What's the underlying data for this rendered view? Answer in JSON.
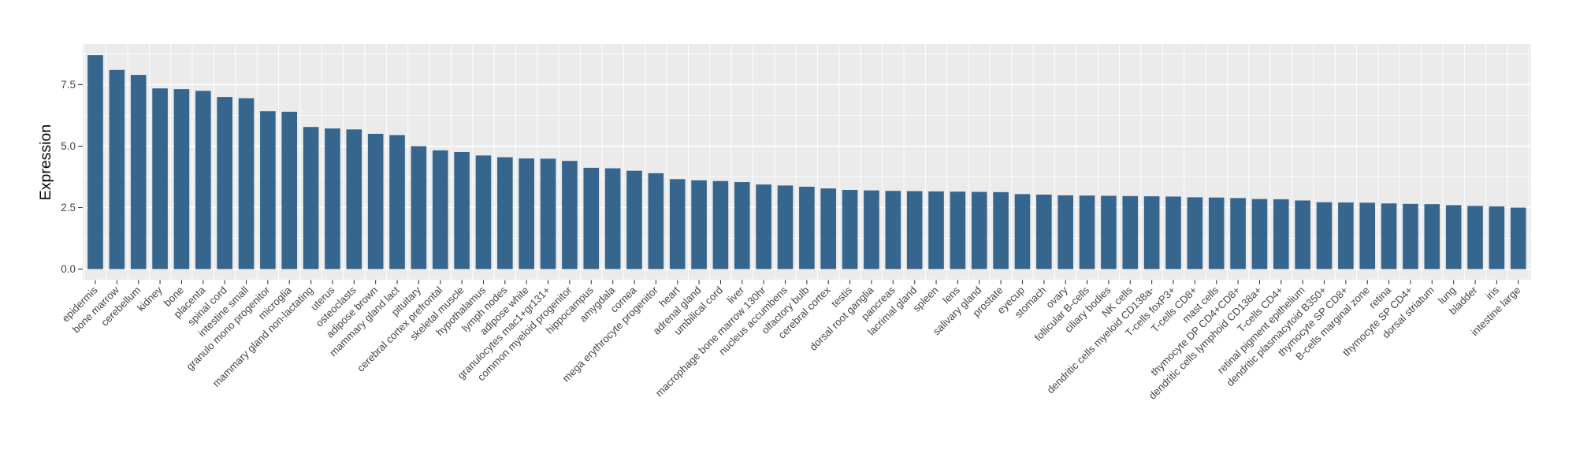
{
  "chart_data": {
    "type": "bar",
    "title": "",
    "xlabel": "",
    "ylabel": "Expression",
    "legend_position": "none",
    "grid": "on",
    "ylim": [
      0,
      9.15
    ],
    "yticks_labels": [
      "0.0",
      "2.5",
      "5.0",
      "7.5"
    ],
    "yticks_values": [
      0,
      2.5,
      5.0,
      7.5
    ],
    "yminor_values": [
      1.25,
      3.75,
      6.25,
      8.75
    ],
    "panel_bg_color": "#EBEBEB",
    "bar_color": "#36658D",
    "grid_color": "#FFFFFF",
    "axis_text_color": "#474747",
    "axis_title_color": "#000000",
    "tick_mark_color": "#333333",
    "categories": [
      "epidermis",
      "bone marrow",
      "cerebellum",
      "kidney",
      "bone",
      "placenta",
      "spinal cord",
      "intestine small",
      "granulo mono progenitor",
      "microglia",
      "mammary gland non-lactating",
      "uterus",
      "osteoclasts",
      "adipose brown",
      "mammary gland lact",
      "pituitary",
      "cerebral cortex prefrontal",
      "skeletal muscle",
      "hypothalamus",
      "lymph nodes",
      "adipose white",
      "granulocytes mac1+gr131+",
      "common myeloid progenitor",
      "hippocampus",
      "amygdala",
      "cornea",
      "mega erythrocyte progenitor",
      "heart",
      "adrenal gland",
      "umbilical cord",
      "liver",
      "macrophage bone marrow 130hr",
      "nucleus accumbens",
      "olfactory bulb",
      "cerebral cortex",
      "testis",
      "dorsal root ganglia",
      "pancreas",
      "lacrimal gland",
      "spleen",
      "lens",
      "salivary gland",
      "prostate",
      "eyecup",
      "stomach",
      "ovary",
      "follicular B-cells",
      "ciliary bodies",
      "NK cells",
      "dendritic cells myeloid CD138a-",
      "T-cells foxP3+",
      "T-cells CD8+",
      "mast cells",
      "thymocyte DP CD4+CD8+",
      "dendritic cells lymphoid CD138a+",
      "T-cells CD4+",
      "retinal pigment epithelium",
      "dendritic plasmacytoid B350+",
      "thymocyte SP CD8+",
      "B-cells marginal zone",
      "retina",
      "thymocyte SP CD4+",
      "dorsal striatum",
      "lung",
      "bladder",
      "iris",
      "intestine large"
    ],
    "values": [
      8.7,
      8.1,
      7.9,
      7.35,
      7.32,
      7.25,
      7.0,
      6.95,
      6.42,
      6.4,
      5.78,
      5.72,
      5.68,
      5.5,
      5.45,
      5.0,
      4.83,
      4.76,
      4.62,
      4.55,
      4.5,
      4.49,
      4.4,
      4.12,
      4.1,
      4.0,
      3.9,
      3.66,
      3.61,
      3.58,
      3.54,
      3.44,
      3.4,
      3.35,
      3.28,
      3.22,
      3.2,
      3.18,
      3.17,
      3.16,
      3.15,
      3.14,
      3.13,
      3.05,
      3.03,
      3.0,
      2.99,
      2.98,
      2.97,
      2.96,
      2.95,
      2.92,
      2.91,
      2.89,
      2.85,
      2.84,
      2.79,
      2.72,
      2.71,
      2.7,
      2.67,
      2.65,
      2.64,
      2.6,
      2.57,
      2.55,
      2.5
    ]
  }
}
